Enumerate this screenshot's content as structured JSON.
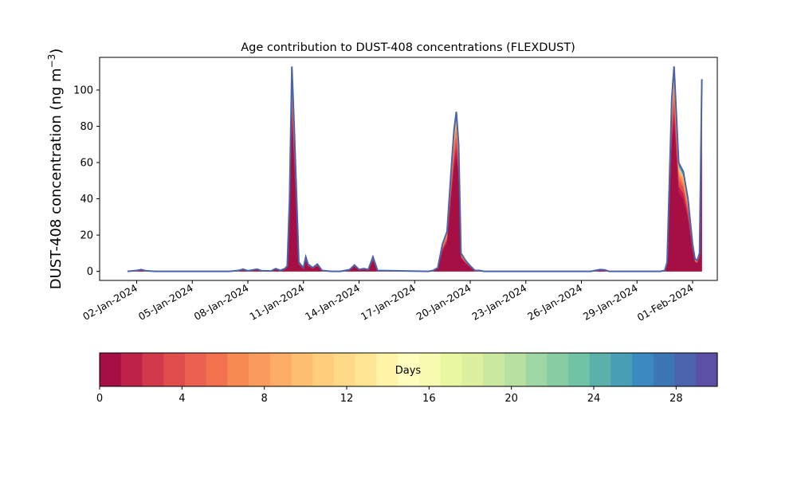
{
  "chart_data": {
    "type": "area",
    "stacked": true,
    "title": "Age contribution to DUST-408 concentrations (FLEXDUST)",
    "ylabel": "DUST-408 concentration (ng m",
    "ylabel_sup": "−3",
    "ylabel_close": ")",
    "xlabel": "",
    "xlim": [
      "2023-12-31T00:00",
      "2024-02-02T08:00"
    ],
    "ylim": [
      -5,
      118
    ],
    "yticks": [
      0,
      20,
      40,
      60,
      80,
      100
    ],
    "xticks": [
      "02-Jan-2024",
      "05-Jan-2024",
      "08-Jan-2024",
      "11-Jan-2024",
      "14-Jan-2024",
      "17-Jan-2024",
      "20-Jan-2024",
      "23-Jan-2024",
      "26-Jan-2024",
      "29-Jan-2024",
      "01-Feb-2024"
    ],
    "xtick_dates": [
      "2024-01-02",
      "2024-01-05",
      "2024-01-08",
      "2024-01-11",
      "2024-01-14",
      "2024-01-17",
      "2024-01-20",
      "2024-01-23",
      "2024-01-26",
      "2024-01-29",
      "2024-02-01"
    ],
    "total_concentration": {
      "x": [
        "2024-01-01T12:00",
        "2024-01-02T00:00",
        "2024-01-02T06:00",
        "2024-01-02T12:00",
        "2024-01-03T00:00",
        "2024-01-06T00:00",
        "2024-01-07T00:00",
        "2024-01-07T12:00",
        "2024-01-07T18:00",
        "2024-01-08T00:00",
        "2024-01-08T06:00",
        "2024-01-08T12:00",
        "2024-01-08T18:00",
        "2024-01-09T06:00",
        "2024-01-09T12:00",
        "2024-01-09T18:00",
        "2024-01-10T00:00",
        "2024-01-10T03:00",
        "2024-01-10T06:00",
        "2024-01-10T09:00",
        "2024-01-10T12:00",
        "2024-01-10T18:00",
        "2024-01-11T00:00",
        "2024-01-11T03:00",
        "2024-01-11T06:00",
        "2024-01-11T12:00",
        "2024-01-11T18:00",
        "2024-01-12T00:00",
        "2024-01-12T12:00",
        "2024-01-13T00:00",
        "2024-01-13T06:00",
        "2024-01-13T12:00",
        "2024-01-13T18:00",
        "2024-01-14T00:00",
        "2024-01-14T06:00",
        "2024-01-14T12:00",
        "2024-01-14T18:00",
        "2024-01-15T00:00",
        "2024-01-17T18:00",
        "2024-01-18T00:00",
        "2024-01-18T06:00",
        "2024-01-18T12:00",
        "2024-01-18T18:00",
        "2024-01-19T00:00",
        "2024-01-19T03:00",
        "2024-01-19T06:00",
        "2024-01-19T09:00",
        "2024-01-19T12:00",
        "2024-01-19T18:00",
        "2024-01-20T00:00",
        "2024-01-20T06:00",
        "2024-01-20T12:00",
        "2024-01-20T18:00",
        "2024-01-26T12:00",
        "2024-01-26T18:00",
        "2024-01-27T00:00",
        "2024-01-27T06:00",
        "2024-01-27T12:00",
        "2024-01-28T00:00",
        "2024-01-28T12:00",
        "2024-01-30T06:00",
        "2024-01-30T12:00",
        "2024-01-30T15:00",
        "2024-01-30T18:00",
        "2024-01-30T21:00",
        "2024-01-31T00:00",
        "2024-01-31T06:00",
        "2024-01-31T12:00",
        "2024-01-31T18:00",
        "2024-02-01T00:00",
        "2024-02-01T03:00",
        "2024-02-01T06:00",
        "2024-02-01T09:00",
        "2024-02-01T12:00"
      ],
      "values": [
        0,
        0.5,
        1,
        0.3,
        0,
        0,
        0,
        0.5,
        1.2,
        0.3,
        0.8,
        1.2,
        0.3,
        0.2,
        1.5,
        0.5,
        1.5,
        3,
        40,
        113,
        80,
        5,
        2,
        8,
        4,
        2,
        4,
        0.5,
        0,
        0,
        0.5,
        1,
        3.5,
        1,
        1.5,
        1,
        8,
        0.5,
        0,
        0.5,
        2,
        15,
        22,
        60,
        78,
        88,
        70,
        10,
        6,
        3,
        0.5,
        0.5,
        0,
        0,
        0.5,
        1,
        0.8,
        0,
        0,
        0,
        0,
        0.5,
        5,
        50,
        95,
        113,
        60,
        55,
        40,
        15,
        7,
        6,
        10,
        106
      ],
      "note": "total (top of stack), series values sum to this"
    },
    "colorbar": {
      "label": "Days",
      "min": 0,
      "max": 30,
      "ticks": [
        0,
        4,
        8,
        12,
        16,
        20,
        24,
        28
      ],
      "colors": [
        "#a50f44",
        "#be2248",
        "#d23a4b",
        "#e04e4c",
        "#ea6150",
        "#f1724d",
        "#f68a53",
        "#fa9a5c",
        "#fcac64",
        "#fdbe70",
        "#fece7c",
        "#fed987",
        "#fee695",
        "#fff3a8",
        "#fffebe",
        "#f7fbb1",
        "#eaf7a1",
        "#dcf09f",
        "#cbe99e",
        "#b8e1a1",
        "#9fd7a4",
        "#86cda4",
        "#70c4a5",
        "#5bb1a9",
        "#489eb5",
        "#3a8ac0",
        "#3c76b4",
        "#4a63ab",
        "#5b50a3"
      ]
    }
  }
}
